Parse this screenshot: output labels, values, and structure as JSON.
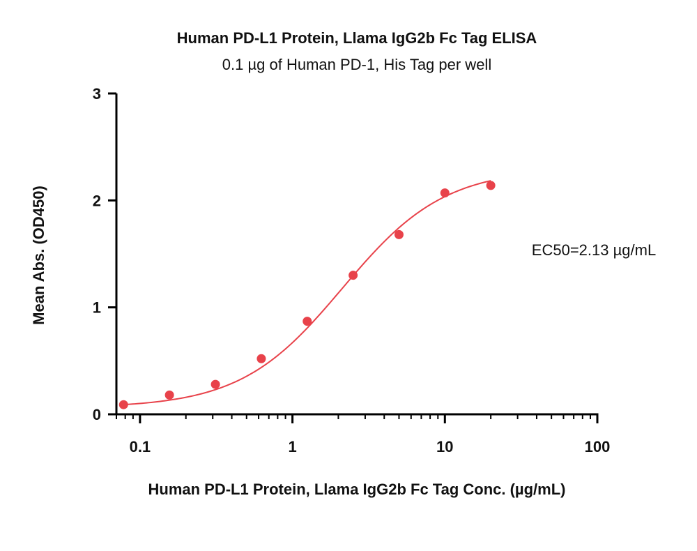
{
  "chart_data": {
    "type": "scatter",
    "title": "Human PD-L1 Protein, Llama IgG2b Fc Tag ELISA",
    "subtitle": "0.1 µg of Human PD-1, His Tag per well",
    "xlabel": "Human PD-L1 Protein, Llama IgG2b Fc Tag Conc. (µg/mL)",
    "ylabel": "Mean Abs. (OD450)",
    "xscale": "log",
    "xlim": [
      0.07,
      100
    ],
    "ylim": [
      0,
      3
    ],
    "x_ticks": [
      0.1,
      1,
      10,
      100
    ],
    "x_tick_labels": [
      "0.1",
      "1",
      "10",
      "100"
    ],
    "y_ticks": [
      0,
      1,
      2,
      3
    ],
    "y_tick_labels": [
      "0",
      "1",
      "2",
      "3"
    ],
    "grid": false,
    "color": "#e8424a",
    "points": {
      "x": [
        0.078,
        0.156,
        0.3125,
        0.625,
        1.25,
        2.5,
        5,
        10,
        20
      ],
      "y": [
        0.09,
        0.18,
        0.28,
        0.52,
        0.87,
        1.3,
        1.68,
        2.07,
        2.14
      ]
    },
    "fit": {
      "type": "4PL",
      "bottom": 0.06,
      "top": 2.3,
      "ec50": 2.13,
      "hill": 1.3
    },
    "annotation": "EC50=2.13 µg/mL"
  }
}
